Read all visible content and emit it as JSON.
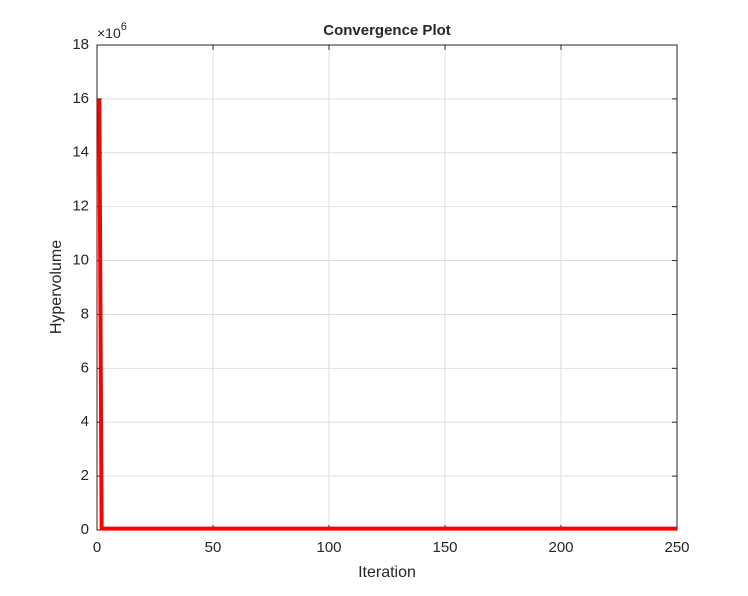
{
  "chart_data": {
    "type": "line",
    "title": "Convergence Plot",
    "x_label": "Iteration",
    "y_label": "Hypervolume",
    "y_multiplier_base": "×10",
    "y_multiplier_exponent": "6",
    "x": [
      1,
      2,
      250
    ],
    "series": [
      {
        "name": "Hypervolume",
        "color": "#ff0000",
        "values": [
          16,
          0.05,
          0.05
        ]
      }
    ],
    "xlim": [
      0,
      250
    ],
    "xticks": [
      0,
      50,
      100,
      150,
      200,
      250
    ],
    "ylim": [
      0,
      18
    ],
    "yticks": [
      0,
      2,
      4,
      6,
      8,
      10,
      12,
      14,
      16,
      18
    ],
    "grid": true
  }
}
